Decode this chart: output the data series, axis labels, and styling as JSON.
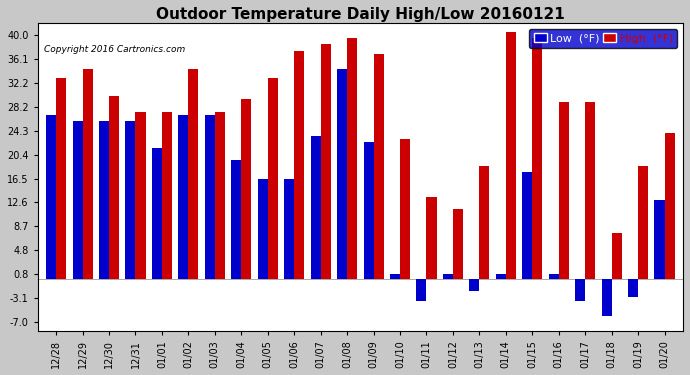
{
  "title": "Outdoor Temperature Daily High/Low 20160121",
  "copyright": "Copyright 2016 Cartronics.com",
  "legend_low": "Low  (°F)",
  "legend_high": "High  (°F)",
  "dates": [
    "12/28",
    "12/29",
    "12/30",
    "12/31",
    "01/01",
    "01/02",
    "01/03",
    "01/04",
    "01/05",
    "01/06",
    "01/07",
    "01/08",
    "01/09",
    "01/10",
    "01/11",
    "01/12",
    "01/13",
    "01/14",
    "01/15",
    "01/16",
    "01/17",
    "01/18",
    "01/19",
    "01/20"
  ],
  "high": [
    33.0,
    34.5,
    30.0,
    27.5,
    27.5,
    34.5,
    27.5,
    29.5,
    33.0,
    37.5,
    38.5,
    39.5,
    37.0,
    23.0,
    13.5,
    11.5,
    18.5,
    40.5,
    39.5,
    29.0,
    29.0,
    7.5,
    18.5,
    24.0
  ],
  "low": [
    27.0,
    26.0,
    26.0,
    26.0,
    21.5,
    27.0,
    27.0,
    19.5,
    16.5,
    16.5,
    23.5,
    34.5,
    22.5,
    0.8,
    -3.5,
    0.8,
    -2.0,
    0.8,
    17.5,
    0.8,
    -3.5,
    -6.0,
    -3.0,
    13.0
  ],
  "low_color": "#0000cc",
  "high_color": "#cc0000",
  "fig_bg_color": "#c8c8c8",
  "plot_bg_color": "#ffffff",
  "grid_color": "#aaaaaa",
  "yticks": [
    -7.0,
    -3.1,
    0.8,
    4.8,
    8.7,
    12.6,
    16.5,
    20.4,
    24.3,
    28.2,
    32.2,
    36.1,
    40.0
  ],
  "ylim": [
    -8.5,
    42.0
  ],
  "bar_width": 0.38,
  "title_fontsize": 11,
  "tick_fontsize": 7,
  "legend_fontsize": 8
}
